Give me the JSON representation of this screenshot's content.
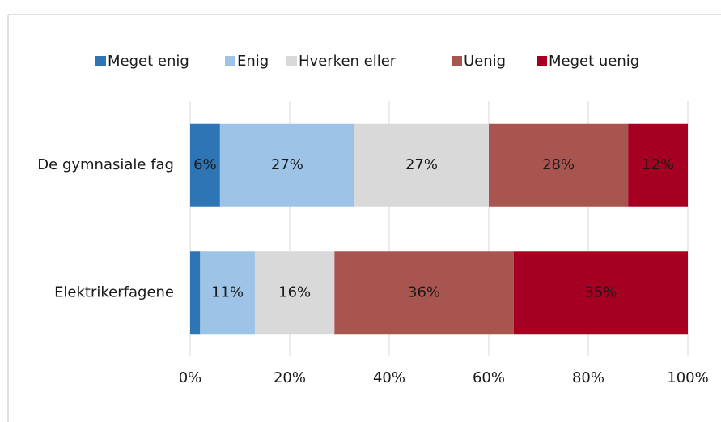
{
  "chart_data": {
    "type": "stacked-bar-horizontal",
    "categories": [
      "De gymnasiale fag",
      "Elektrikerfagene"
    ],
    "series": [
      {
        "name": "Meget enig",
        "color": "#2e75b6",
        "values": [
          6,
          2
        ],
        "value_labels": [
          "6%",
          null
        ]
      },
      {
        "name": "Enig",
        "color": "#9dc3e6",
        "values": [
          27,
          11
        ],
        "value_labels": [
          "27%",
          "11%"
        ]
      },
      {
        "name": "Hverken eller",
        "color": "#d9d9d9",
        "values": [
          27,
          16
        ],
        "value_labels": [
          "27%",
          "16%"
        ]
      },
      {
        "name": "Uenig",
        "color": "#a9554f",
        "values": [
          28,
          36
        ],
        "value_labels": [
          "28%",
          "36%"
        ]
      },
      {
        "name": "Meget uenig",
        "color": "#a50021",
        "values": [
          12,
          35
        ],
        "value_labels": [
          "12%",
          "35%"
        ]
      }
    ],
    "xlim": [
      0,
      100
    ],
    "xticks": [
      {
        "value": 0,
        "label": "0%"
      },
      {
        "value": 20,
        "label": "20%"
      },
      {
        "value": 40,
        "label": "40%"
      },
      {
        "value": 60,
        "label": "60%"
      },
      {
        "value": 80,
        "label": "80%"
      },
      {
        "value": 100,
        "label": "100%"
      }
    ],
    "grid": true,
    "legend": "top"
  }
}
